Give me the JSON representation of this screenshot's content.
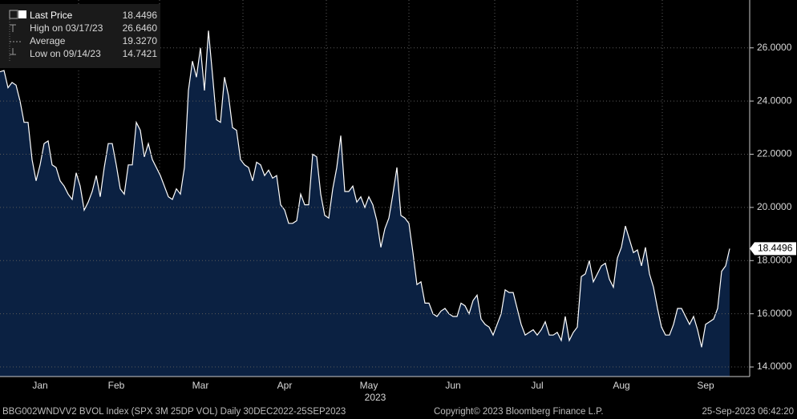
{
  "chart_data": {
    "type": "area",
    "series": [
      {
        "name": "Last Price",
        "color": "#ffffff",
        "fill": "#0b2142",
        "values": [
          25.1,
          25.15,
          24.5,
          24.7,
          24.6,
          24.0,
          23.2,
          23.2,
          21.8,
          21.0,
          21.6,
          22.4,
          22.5,
          21.6,
          21.5,
          21.0,
          20.8,
          20.5,
          20.3,
          21.3,
          20.8,
          19.9,
          20.2,
          20.6,
          21.2,
          20.4,
          21.5,
          22.4,
          22.4,
          21.6,
          20.7,
          20.5,
          21.6,
          21.6,
          23.2,
          22.9,
          21.9,
          22.4,
          21.8,
          21.5,
          21.2,
          20.8,
          20.4,
          20.3,
          20.7,
          20.5,
          21.5,
          24.4,
          25.5,
          24.9,
          26.0,
          24.4,
          26.646,
          25.0,
          23.3,
          23.2,
          24.9,
          24.2,
          23.0,
          22.9,
          21.8,
          21.6,
          21.5,
          21.0,
          21.7,
          21.6,
          21.2,
          21.4,
          21.1,
          21.2,
          20.1,
          19.9,
          19.4,
          19.4,
          19.5,
          20.5,
          20.1,
          20.1,
          22.0,
          21.9,
          20.5,
          19.7,
          19.6,
          20.7,
          21.5,
          22.7,
          20.6,
          20.6,
          20.8,
          20.2,
          20.4,
          20.0,
          20.4,
          20.1,
          19.5,
          18.5,
          19.2,
          19.6,
          20.5,
          21.5,
          19.7,
          19.6,
          19.4,
          18.3,
          17.1,
          17.2,
          16.4,
          16.4,
          16.0,
          15.9,
          16.1,
          16.2,
          16.0,
          15.9,
          15.9,
          16.4,
          16.3,
          16.0,
          16.5,
          16.7,
          15.8,
          15.6,
          15.5,
          15.2,
          15.6,
          16.0,
          16.9,
          16.8,
          16.8,
          16.2,
          15.6,
          15.2,
          15.3,
          15.4,
          15.2,
          15.4,
          15.7,
          15.2,
          15.2,
          15.3,
          15.0,
          15.9,
          15.0,
          15.3,
          15.5,
          17.4,
          17.5,
          18.0,
          17.2,
          17.5,
          17.8,
          17.9,
          17.3,
          17.0,
          18.1,
          18.5,
          19.3,
          18.8,
          18.3,
          18.4,
          17.8,
          18.5,
          17.5,
          17.0,
          16.2,
          15.5,
          15.2,
          15.2,
          15.6,
          16.2,
          16.2,
          15.9,
          15.6,
          15.9,
          15.4,
          14.7421,
          15.6,
          15.7,
          15.8,
          16.2,
          17.6,
          17.8,
          18.4496
        ]
      }
    ],
    "categories": [
      null,
      null,
      null,
      null,
      null,
      null,
      null,
      null,
      null,
      null,
      "Jan",
      null,
      null,
      null,
      null,
      null,
      null,
      null,
      null,
      null,
      null,
      null,
      null,
      null,
      null,
      null,
      null,
      null,
      null,
      "Feb",
      null,
      null,
      null,
      null,
      null,
      null,
      null,
      null,
      null,
      null,
      null,
      null,
      null,
      null,
      null,
      null,
      null,
      null,
      null,
      null,
      "Mar",
      null,
      null,
      null,
      null,
      null,
      null,
      null,
      null,
      null,
      null,
      null,
      null,
      null,
      null,
      null,
      null,
      null,
      null,
      null,
      null,
      "Apr",
      null,
      null,
      null,
      null,
      null,
      null,
      null,
      null,
      null,
      null,
      null,
      null,
      null,
      null,
      null,
      null,
      null,
      null,
      null,
      null,
      "May",
      null,
      null,
      null,
      null,
      null,
      null,
      null,
      null,
      null,
      null,
      null,
      null,
      null,
      null,
      null,
      null,
      null,
      null,
      null,
      null,
      "Jun",
      null,
      null,
      null,
      null,
      null,
      null,
      null,
      null,
      null,
      null,
      null,
      null,
      null,
      null,
      null,
      null,
      null,
      null,
      null,
      null,
      "Jul",
      null,
      null,
      null,
      null,
      null,
      null,
      null,
      null,
      null,
      null,
      null,
      null,
      null,
      null,
      null,
      null,
      null,
      null,
      null,
      null,
      "Aug",
      null,
      null,
      null,
      null,
      null,
      null,
      null,
      null,
      null,
      null,
      null,
      null,
      null,
      null,
      null,
      null,
      null,
      null,
      null,
      null,
      "Sep",
      null,
      null,
      null,
      null,
      null,
      null
    ],
    "year_label": "2023",
    "ylim": [
      13.64,
      27.8
    ],
    "yticks": [
      {
        "value": 14,
        "label": "14.0000"
      },
      {
        "value": 16,
        "label": "16.0000"
      },
      {
        "value": 18,
        "label": "18.0000"
      },
      {
        "value": 20,
        "label": "20.0000"
      },
      {
        "value": 22,
        "label": "22.0000"
      },
      {
        "value": 24,
        "label": "24.0000"
      },
      {
        "value": 26,
        "label": "26.0000"
      }
    ],
    "grid": true,
    "legend": [
      {
        "label": "Last Price",
        "value": "18.4496"
      },
      {
        "label": "High on 03/17/23",
        "value": "26.6460"
      },
      {
        "label": "Average",
        "value": "19.3270"
      },
      {
        "label": "Low on 09/14/23",
        "value": "14.7421"
      }
    ],
    "footer": {
      "left": "BBG002WNDVV2 BVOL Index (SPX 3M 25DP VOL)  Daily 30DEC2022-25SEP2023",
      "center": "Copyright© 2023 Bloomberg Finance L.P.",
      "right": "25-Sep-2023 06:42:20"
    }
  }
}
